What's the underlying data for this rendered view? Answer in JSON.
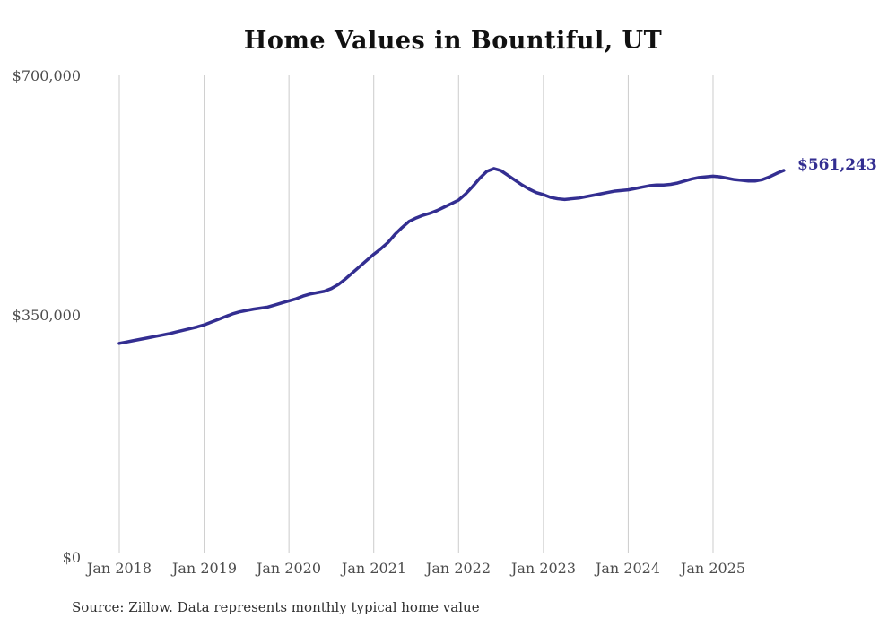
{
  "chart": {
    "title": "Home Values in Bountiful, UT",
    "end_label": "$561,243",
    "source": "Source: Zillow. Data represents monthly typical home value"
  },
  "colors": {
    "line": "#332e91",
    "end_label": "#332e91",
    "gridline": "#cccccc",
    "title": "#111111",
    "axis_text": "#4d4d4d"
  },
  "chart_data": {
    "type": "line",
    "title": "Home Values in Bountiful, UT",
    "xlabel": "",
    "ylabel": "",
    "ylim": [
      0,
      700000
    ],
    "grid": "vertical-only",
    "legend": "none",
    "y_tick_labels": [
      "$700,000",
      "$350,000",
      "$0"
    ],
    "y_tick_values": [
      700000,
      350000,
      0
    ],
    "x_tick_labels": [
      "Jan 2018",
      "Jan 2019",
      "Jan 2020",
      "Jan 2021",
      "Jan 2022",
      "Jan 2023",
      "Jan 2024",
      "Jan 2025"
    ],
    "series_name": "Monthly typical home value",
    "start_month": "2018-01",
    "end_month": "2025-11",
    "last_value": 561243,
    "values": [
      309000,
      311000,
      313000,
      315000,
      317000,
      319000,
      321000,
      323000,
      325500,
      328000,
      330500,
      333000,
      336000,
      340000,
      344000,
      348000,
      352000,
      355000,
      357000,
      359000,
      360500,
      362000,
      365000,
      368000,
      371000,
      374000,
      378000,
      381000,
      383000,
      385000,
      389000,
      395000,
      403000,
      412000,
      421000,
      430000,
      439000,
      447000,
      456000,
      468000,
      478000,
      487000,
      492000,
      496000,
      499000,
      503000,
      508000,
      513000,
      518000,
      527000,
      538000,
      550000,
      560000,
      564000,
      561000,
      554000,
      547000,
      540000,
      534000,
      529000,
      526000,
      522000,
      520000,
      519000,
      520000,
      521000,
      523000,
      525000,
      527000,
      529000,
      531000,
      532000,
      533000,
      535000,
      537000,
      539000,
      540000,
      540000,
      541000,
      543000,
      546000,
      549000,
      551000,
      552000,
      553000,
      552000,
      550000,
      548000,
      547000,
      546000,
      546000,
      548000,
      552000,
      557000,
      561243
    ]
  }
}
